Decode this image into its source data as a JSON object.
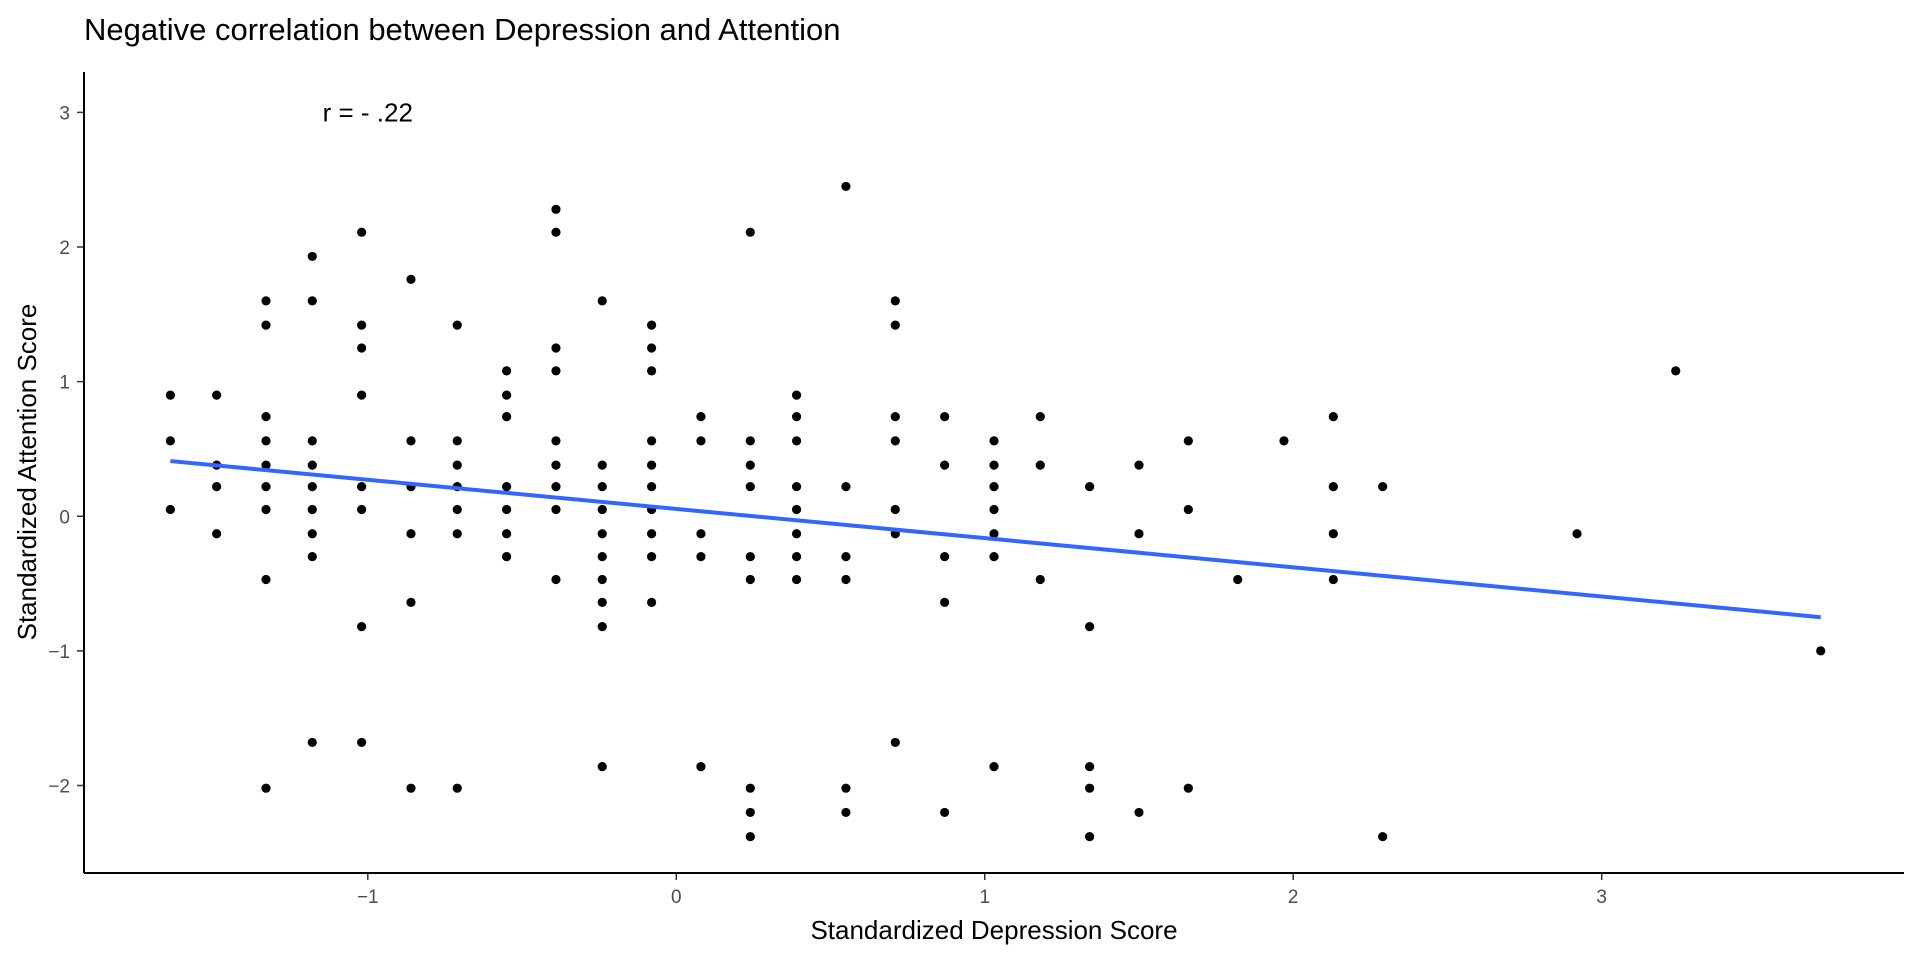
{
  "chart_data": {
    "type": "scatter",
    "title": "Negative correlation between Depression and Attention",
    "xlabel": "Standardized Depression Score",
    "ylabel": "Standardized Attention Score",
    "xlim": [
      -1.92,
      3.98
    ],
    "ylim": [
      -2.65,
      3.3
    ],
    "x_ticks": [
      -1,
      0,
      1,
      2,
      3
    ],
    "y_ticks": [
      -2,
      -1,
      0,
      1,
      2,
      3
    ],
    "grid": false,
    "annotation": {
      "text": "r = - .22",
      "x": -1.0,
      "y": 3.0
    },
    "trend_line": {
      "color": "#3366FF",
      "x": [
        -1.64,
        3.71
      ],
      "y": [
        0.41,
        -0.75
      ]
    },
    "point_color": "#000000",
    "points": [
      [
        -1.64,
        0.9
      ],
      [
        -1.64,
        0.56
      ],
      [
        -1.64,
        0.05
      ],
      [
        -1.49,
        0.9
      ],
      [
        -1.49,
        0.38
      ],
      [
        -1.49,
        0.22
      ],
      [
        -1.49,
        -0.13
      ],
      [
        -1.33,
        1.6
      ],
      [
        -1.33,
        1.42
      ],
      [
        -1.33,
        0.74
      ],
      [
        -1.33,
        0.56
      ],
      [
        -1.33,
        0.38
      ],
      [
        -1.33,
        0.22
      ],
      [
        -1.33,
        0.05
      ],
      [
        -1.33,
        -0.47
      ],
      [
        -1.33,
        -2.02
      ],
      [
        -1.18,
        1.93
      ],
      [
        -1.18,
        1.6
      ],
      [
        -1.18,
        0.56
      ],
      [
        -1.18,
        0.38
      ],
      [
        -1.18,
        0.22
      ],
      [
        -1.18,
        0.05
      ],
      [
        -1.18,
        -0.13
      ],
      [
        -1.18,
        -0.3
      ],
      [
        -1.18,
        -1.68
      ],
      [
        -1.02,
        2.11
      ],
      [
        -1.02,
        1.42
      ],
      [
        -1.02,
        1.25
      ],
      [
        -1.02,
        0.9
      ],
      [
        -1.02,
        0.22
      ],
      [
        -1.02,
        0.05
      ],
      [
        -1.02,
        -0.82
      ],
      [
        -1.02,
        -1.68
      ],
      [
        -0.86,
        1.76
      ],
      [
        -0.86,
        0.56
      ],
      [
        -0.86,
        0.22
      ],
      [
        -0.86,
        -0.13
      ],
      [
        -0.86,
        -0.64
      ],
      [
        -0.86,
        -2.02
      ],
      [
        -0.71,
        1.42
      ],
      [
        -0.71,
        0.56
      ],
      [
        -0.71,
        0.38
      ],
      [
        -0.71,
        0.22
      ],
      [
        -0.71,
        0.05
      ],
      [
        -0.71,
        -0.13
      ],
      [
        -0.71,
        -2.02
      ],
      [
        -0.55,
        1.08
      ],
      [
        -0.55,
        0.9
      ],
      [
        -0.55,
        0.74
      ],
      [
        -0.55,
        0.22
      ],
      [
        -0.55,
        0.05
      ],
      [
        -0.55,
        -0.13
      ],
      [
        -0.55,
        -0.3
      ],
      [
        -0.39,
        2.28
      ],
      [
        -0.39,
        2.11
      ],
      [
        -0.39,
        1.25
      ],
      [
        -0.39,
        1.08
      ],
      [
        -0.39,
        0.56
      ],
      [
        -0.39,
        0.38
      ],
      [
        -0.39,
        0.22
      ],
      [
        -0.39,
        0.05
      ],
      [
        -0.39,
        -0.47
      ],
      [
        -0.24,
        1.6
      ],
      [
        -0.24,
        0.38
      ],
      [
        -0.24,
        0.22
      ],
      [
        -0.24,
        0.05
      ],
      [
        -0.24,
        -0.13
      ],
      [
        -0.24,
        -0.3
      ],
      [
        -0.24,
        -0.47
      ],
      [
        -0.24,
        -0.64
      ],
      [
        -0.24,
        -0.82
      ],
      [
        -0.24,
        -1.86
      ],
      [
        -0.08,
        1.42
      ],
      [
        -0.08,
        1.25
      ],
      [
        -0.08,
        1.08
      ],
      [
        -0.08,
        0.56
      ],
      [
        -0.08,
        0.38
      ],
      [
        -0.08,
        0.22
      ],
      [
        -0.08,
        0.05
      ],
      [
        -0.08,
        -0.13
      ],
      [
        -0.08,
        -0.3
      ],
      [
        -0.08,
        -0.64
      ],
      [
        0.08,
        0.74
      ],
      [
        0.08,
        0.56
      ],
      [
        0.08,
        -0.13
      ],
      [
        0.08,
        -0.3
      ],
      [
        0.08,
        -1.86
      ],
      [
        0.24,
        2.11
      ],
      [
        0.24,
        0.56
      ],
      [
        0.24,
        0.38
      ],
      [
        0.24,
        0.22
      ],
      [
        0.24,
        -0.3
      ],
      [
        0.24,
        -0.47
      ],
      [
        0.24,
        -2.02
      ],
      [
        0.24,
        -2.2
      ],
      [
        0.24,
        -2.38
      ],
      [
        0.39,
        0.9
      ],
      [
        0.39,
        0.74
      ],
      [
        0.39,
        0.56
      ],
      [
        0.39,
        0.22
      ],
      [
        0.39,
        0.05
      ],
      [
        0.39,
        -0.13
      ],
      [
        0.39,
        -0.3
      ],
      [
        0.39,
        -0.47
      ],
      [
        0.55,
        2.45
      ],
      [
        0.55,
        0.22
      ],
      [
        0.55,
        -0.3
      ],
      [
        0.55,
        -0.47
      ],
      [
        0.55,
        -2.02
      ],
      [
        0.55,
        -2.2
      ],
      [
        0.71,
        1.6
      ],
      [
        0.71,
        1.42
      ],
      [
        0.71,
        0.74
      ],
      [
        0.71,
        0.56
      ],
      [
        0.71,
        0.05
      ],
      [
        0.71,
        -0.13
      ],
      [
        0.71,
        -1.68
      ],
      [
        0.87,
        0.74
      ],
      [
        0.87,
        0.38
      ],
      [
        0.87,
        -0.3
      ],
      [
        0.87,
        -0.64
      ],
      [
        0.87,
        -2.2
      ],
      [
        1.03,
        0.56
      ],
      [
        1.03,
        0.38
      ],
      [
        1.03,
        0.22
      ],
      [
        1.03,
        0.05
      ],
      [
        1.03,
        -0.13
      ],
      [
        1.03,
        -0.3
      ],
      [
        1.03,
        -1.86
      ],
      [
        1.18,
        0.74
      ],
      [
        1.18,
        0.38
      ],
      [
        1.18,
        -0.47
      ],
      [
        1.34,
        0.22
      ],
      [
        1.34,
        -0.82
      ],
      [
        1.34,
        -1.86
      ],
      [
        1.34,
        -2.02
      ],
      [
        1.34,
        -2.38
      ],
      [
        1.5,
        0.38
      ],
      [
        1.5,
        -0.13
      ],
      [
        1.5,
        -2.2
      ],
      [
        1.66,
        0.56
      ],
      [
        1.66,
        0.05
      ],
      [
        1.66,
        -2.02
      ],
      [
        1.82,
        -0.47
      ],
      [
        1.97,
        0.56
      ],
      [
        2.13,
        0.74
      ],
      [
        2.13,
        0.22
      ],
      [
        2.13,
        -0.13
      ],
      [
        2.13,
        -0.47
      ],
      [
        2.29,
        0.22
      ],
      [
        2.29,
        -2.38
      ],
      [
        2.92,
        -0.13
      ],
      [
        3.24,
        1.08
      ],
      [
        3.71,
        -1.0
      ]
    ]
  }
}
